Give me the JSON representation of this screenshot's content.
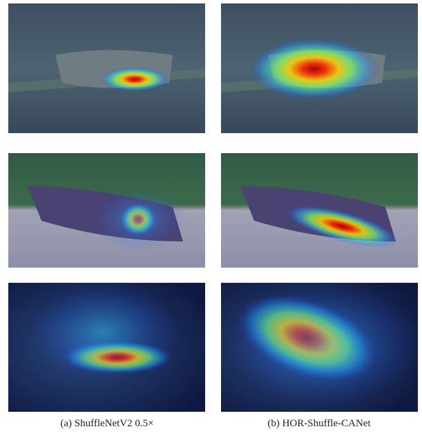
{
  "captions": [
    "(a) ShuffleNetV2 0.5×",
    "(b) HOR-Shuffle-CANet"
  ]
}
